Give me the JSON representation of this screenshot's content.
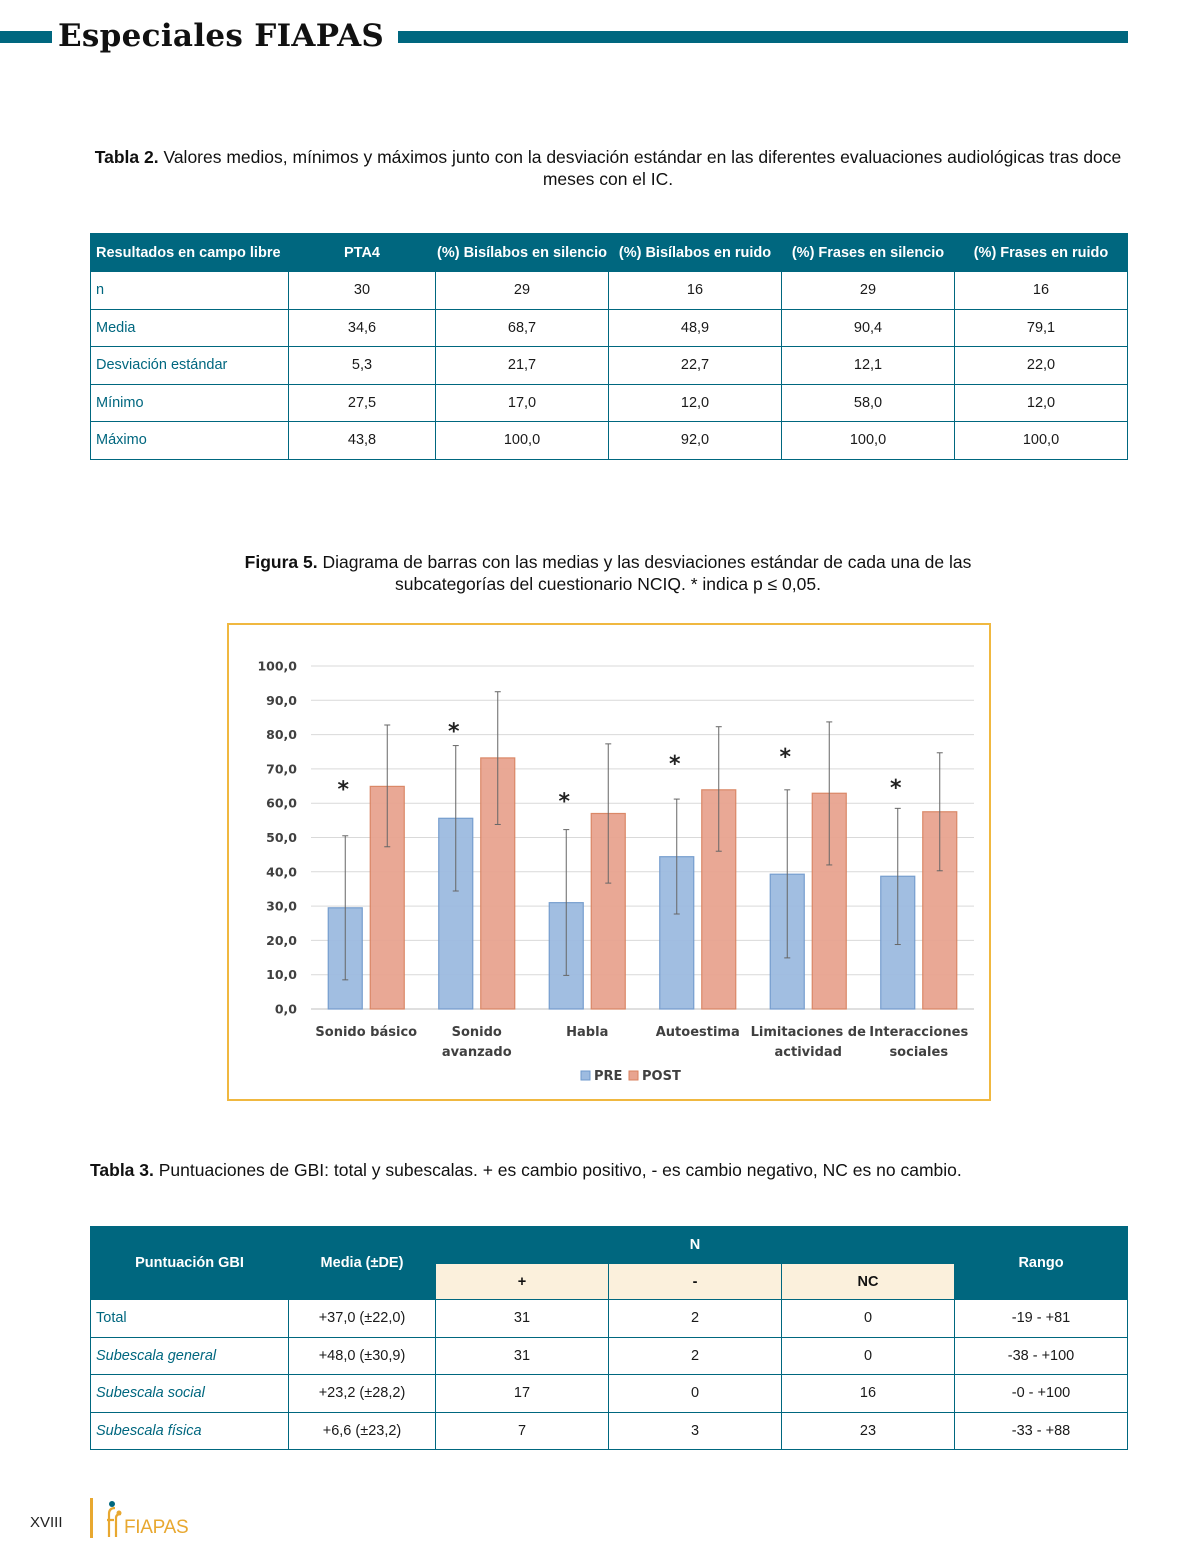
{
  "header": {
    "title": "Especiales FIAPAS"
  },
  "tabla2": {
    "caption_label": "Tabla 2.",
    "caption_text": "Valores medios, mínimos y máximos junto con la desviación estándar en las diferentes evaluaciones audiológicas tras doce meses con el IC.",
    "headers": [
      "Resultados en campo libre",
      "PTA4",
      "(%) Bisílabos en silencio",
      "(%) Bisílabos en ruido",
      "(%) Frases en silencio",
      "(%) Frases en ruido"
    ],
    "rows": [
      [
        "n",
        "30",
        "29",
        "16",
        "29",
        "16"
      ],
      [
        "Media",
        "34,6",
        "68,7",
        "48,9",
        "90,4",
        "79,1"
      ],
      [
        "Desviación estándar",
        "5,3",
        "21,7",
        "22,7",
        "12,1",
        "22,0"
      ],
      [
        "Mínimo",
        "27,5",
        "17,0",
        "12,0",
        "58,0",
        "12,0"
      ],
      [
        "Máximo",
        "43,8",
        "100,0",
        "92,0",
        "100,0",
        "100,0"
      ]
    ]
  },
  "figura5": {
    "caption_label": "Figura 5.",
    "caption_text": "Diagrama de barras con las medias y las desviaciones estándar de cada una de las subcategorías del cuestionario NCIQ. * indica p ≤ 0,05."
  },
  "chart_data": {
    "type": "bar",
    "categories": [
      [
        "Sonido básico"
      ],
      [
        "Sonido",
        "avanzado"
      ],
      [
        "Habla"
      ],
      [
        "Autoestima"
      ],
      [
        "Limitaciones de",
        "actividad"
      ],
      [
        "Interacciones",
        "sociales"
      ]
    ],
    "series": [
      {
        "name": "PRE",
        "values": [
          29.5,
          55.6,
          31.0,
          44.4,
          39.3,
          38.7
        ],
        "error_low": [
          8.5,
          34.4,
          9.8,
          27.7,
          14.9,
          18.8
        ],
        "error_high": [
          50.5,
          76.8,
          52.3,
          61.2,
          63.9,
          58.5
        ],
        "color": "#9dbbe0"
      },
      {
        "name": "POST",
        "values": [
          64.9,
          73.2,
          57.0,
          63.9,
          62.9,
          57.5
        ],
        "error_low": [
          47.3,
          53.8,
          36.7,
          46.0,
          42.0,
          40.3
        ],
        "error_high": [
          82.8,
          92.5,
          77.3,
          82.3,
          83.7,
          74.7
        ],
        "color": "#e8a490"
      }
    ],
    "significance": [
      "*",
      "*",
      "*",
      "*",
      "*",
      "*"
    ],
    "significance_y": [
      66.0,
      83.0,
      62.5,
      73.5,
      75.5,
      66.5
    ],
    "y_ticks": [
      "0,0",
      "10,0",
      "20,0",
      "30,0",
      "40,0",
      "50,0",
      "60,0",
      "70,0",
      "80,0",
      "90,0",
      "100,0"
    ],
    "ylim": [
      0,
      100
    ],
    "grid": true,
    "legend": "bottom-center"
  },
  "tabla3": {
    "caption_label": "Tabla 3.",
    "caption_text": "Puntuaciones de GBI: total y subescalas. + es cambio positivo, - es cambio negativo, NC es no cambio.",
    "headers": {
      "col1": "Puntuación GBI",
      "col2": "Media (±DE)",
      "group": "N",
      "sub": [
        "+",
        "-",
        "NC"
      ],
      "col_last": "Rango"
    },
    "rows": [
      [
        "Total",
        "+37,0 (±22,0)",
        "31",
        "2",
        "0",
        "-19 - +81"
      ],
      [
        "Subescala general",
        "+48,0 (±30,9)",
        "31",
        "2",
        "0",
        "-38 - +100"
      ],
      [
        "Subescala social",
        "+23,2 (±28,2)",
        "17",
        "0",
        "16",
        "-0 - +100"
      ],
      [
        "Subescala física",
        "+6,6 (±23,2)",
        "7",
        "3",
        "23",
        "-33 - +88"
      ]
    ]
  },
  "footer": {
    "page_number": "XVIII",
    "logo_text": "FIAPAS"
  },
  "colors": {
    "accent": "#00677f",
    "gold": "#e8a830",
    "pre": "#9dbbe0",
    "post": "#e8a490"
  }
}
